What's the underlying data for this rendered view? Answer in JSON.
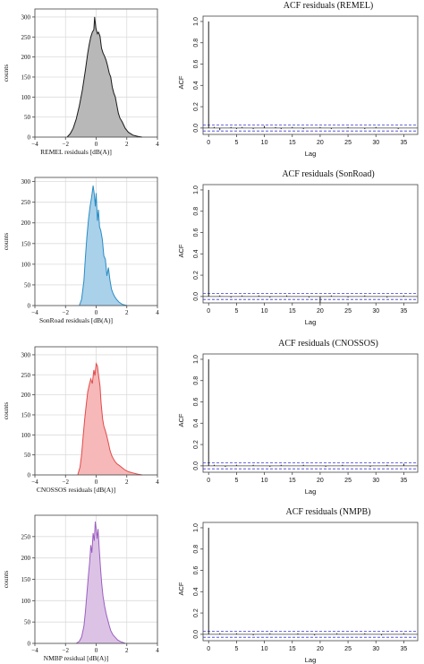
{
  "chart_data": [
    {
      "type": "area",
      "ylabel": "counts",
      "xlabel": "REMEL residuals [dB(A)]",
      "x_ticks": [
        -4,
        -2,
        0,
        2,
        4
      ],
      "y_ticks": [
        0,
        50,
        100,
        150,
        200,
        250,
        300
      ],
      "xlim": [
        -4,
        4
      ],
      "ylim": [
        0,
        320
      ],
      "grid": true,
      "fill": "#b8b8b8",
      "stroke": "#1a1a1a",
      "points": [
        [
          -1.9,
          0
        ],
        [
          -1.7,
          8
        ],
        [
          -1.5,
          22
        ],
        [
          -1.3,
          45
        ],
        [
          -1.1,
          78
        ],
        [
          -0.9,
          118
        ],
        [
          -0.7,
          168
        ],
        [
          -0.55,
          210
        ],
        [
          -0.45,
          232
        ],
        [
          -0.35,
          250
        ],
        [
          -0.25,
          262
        ],
        [
          -0.15,
          268
        ],
        [
          -0.1,
          300
        ],
        [
          -0.02,
          272
        ],
        [
          0.08,
          258
        ],
        [
          0.15,
          262
        ],
        [
          0.25,
          252
        ],
        [
          0.35,
          222
        ],
        [
          0.45,
          210
        ],
        [
          0.55,
          202
        ],
        [
          0.65,
          192
        ],
        [
          0.75,
          178
        ],
        [
          0.85,
          160
        ],
        [
          0.95,
          150
        ],
        [
          1.05,
          125
        ],
        [
          1.15,
          110
        ],
        [
          1.25,
          100
        ],
        [
          1.35,
          80
        ],
        [
          1.45,
          60
        ],
        [
          1.55,
          48
        ],
        [
          1.7,
          38
        ],
        [
          1.9,
          22
        ],
        [
          2.1,
          12
        ],
        [
          2.4,
          5
        ],
        [
          2.7,
          2
        ],
        [
          3.0,
          0
        ]
      ]
    },
    {
      "type": "line",
      "title": "ACF residuals (REMEL)",
      "xlabel": "Lag",
      "ylabel": "ACF",
      "x_ticks": [
        0,
        5,
        10,
        15,
        20,
        25,
        30,
        35
      ],
      "y_ticks": [
        0.0,
        0.2,
        0.4,
        0.6,
        0.8,
        1.0
      ],
      "xlim": [
        -1,
        37.5
      ],
      "ylim": [
        -0.06,
        1.05
      ],
      "conf_band": 0.028,
      "lags": [
        0,
        1,
        2,
        3,
        4,
        5,
        6,
        7,
        8,
        9,
        10,
        11,
        12,
        13,
        14,
        15,
        16,
        17,
        18,
        19,
        20,
        21,
        22,
        23,
        24,
        25,
        26,
        27,
        28,
        29,
        30,
        31,
        32,
        33,
        34,
        35,
        36
      ],
      "values": [
        1.0,
        0.01,
        -0.02,
        0.0,
        0.01,
        -0.01,
        0.01,
        0.0,
        -0.01,
        0.0,
        0.02,
        0.0,
        0.01,
        -0.01,
        0.0,
        0.01,
        0.0,
        -0.01,
        0.0,
        0.0,
        0.01,
        0.0,
        -0.01,
        0.0,
        0.0,
        0.01,
        0.0,
        0.0,
        -0.01,
        0.0,
        0.01,
        0.0,
        0.0,
        0.0,
        -0.01,
        0.0,
        0.0
      ]
    },
    {
      "type": "area",
      "ylabel": "counts",
      "xlabel": "SonRoad residuals [dB(A)]",
      "x_ticks": [
        -4,
        -2,
        0,
        2,
        4
      ],
      "y_ticks": [
        0,
        50,
        100,
        150,
        200,
        250,
        300
      ],
      "xlim": [
        -4,
        4
      ],
      "ylim": [
        0,
        310
      ],
      "grid": true,
      "fill": "#a9d1ea",
      "stroke": "#2a8cc4",
      "points": [
        [
          -1.1,
          0
        ],
        [
          -0.95,
          15
        ],
        [
          -0.8,
          60
        ],
        [
          -0.7,
          118
        ],
        [
          -0.6,
          168
        ],
        [
          -0.5,
          208
        ],
        [
          -0.4,
          240
        ],
        [
          -0.3,
          262
        ],
        [
          -0.2,
          290
        ],
        [
          -0.12,
          270
        ],
        [
          -0.05,
          240
        ],
        [
          0.0,
          272
        ],
        [
          0.08,
          205
        ],
        [
          0.15,
          232
        ],
        [
          0.22,
          190
        ],
        [
          0.3,
          182
        ],
        [
          0.4,
          160
        ],
        [
          0.5,
          120
        ],
        [
          0.6,
          112
        ],
        [
          0.7,
          72
        ],
        [
          0.8,
          92
        ],
        [
          0.9,
          62
        ],
        [
          1.0,
          40
        ],
        [
          1.1,
          30
        ],
        [
          1.2,
          22
        ],
        [
          1.35,
          14
        ],
        [
          1.5,
          8
        ],
        [
          1.7,
          3
        ],
        [
          2.0,
          0
        ]
      ]
    },
    {
      "type": "line",
      "title": "ACF residuals (SonRoad)",
      "xlabel": "Lag",
      "ylabel": "ACF",
      "x_ticks": [
        0,
        5,
        10,
        15,
        20,
        25,
        30,
        35
      ],
      "y_ticks": [
        0.0,
        0.2,
        0.4,
        0.6,
        0.8,
        1.0
      ],
      "xlim": [
        -1,
        37.5
      ],
      "ylim": [
        -0.06,
        1.05
      ],
      "conf_band": 0.028,
      "lags": [
        0,
        1,
        2,
        3,
        4,
        5,
        6,
        7,
        8,
        9,
        10,
        11,
        12,
        13,
        14,
        15,
        16,
        17,
        18,
        19,
        20,
        21,
        22,
        23,
        24,
        25,
        26,
        27,
        28,
        29,
        30,
        31,
        32,
        33,
        34,
        35,
        36
      ],
      "values": [
        1.0,
        0.0,
        0.01,
        0.0,
        -0.01,
        0.0,
        0.01,
        0.0,
        0.0,
        0.01,
        0.0,
        -0.01,
        0.0,
        0.0,
        0.01,
        0.0,
        0.0,
        0.0,
        -0.01,
        0.0,
        -0.06,
        0.0,
        0.01,
        0.0,
        0.0,
        -0.01,
        0.0,
        0.0,
        0.01,
        0.0,
        0.0,
        0.0,
        -0.01,
        0.0,
        0.0,
        0.01,
        0.0
      ]
    },
    {
      "type": "area",
      "ylabel": "counts",
      "xlabel": "CNOSSOS residuals [dB(A)]",
      "x_ticks": [
        -4,
        -2,
        0,
        2,
        4
      ],
      "y_ticks": [
        0,
        50,
        100,
        150,
        200,
        250,
        300
      ],
      "xlim": [
        -4,
        4
      ],
      "ylim": [
        0,
        320
      ],
      "grid": true,
      "fill": "#f6b8b8",
      "stroke": "#e24a4a",
      "points": [
        [
          -1.2,
          0
        ],
        [
          -1.05,
          20
        ],
        [
          -0.95,
          50
        ],
        [
          -0.85,
          95
        ],
        [
          -0.75,
          140
        ],
        [
          -0.65,
          175
        ],
        [
          -0.55,
          208
        ],
        [
          -0.45,
          225
        ],
        [
          -0.35,
          240
        ],
        [
          -0.25,
          228
        ],
        [
          -0.15,
          262
        ],
        [
          -0.08,
          248
        ],
        [
          0.0,
          278
        ],
        [
          0.08,
          272
        ],
        [
          0.15,
          250
        ],
        [
          0.25,
          222
        ],
        [
          0.32,
          180
        ],
        [
          0.42,
          140
        ],
        [
          0.5,
          122
        ],
        [
          0.6,
          110
        ],
        [
          0.7,
          96
        ],
        [
          0.8,
          80
        ],
        [
          0.9,
          62
        ],
        [
          1.0,
          50
        ],
        [
          1.1,
          42
        ],
        [
          1.2,
          35
        ],
        [
          1.35,
          28
        ],
        [
          1.5,
          24
        ],
        [
          1.7,
          18
        ],
        [
          1.9,
          12
        ],
        [
          2.1,
          8
        ],
        [
          2.4,
          5
        ],
        [
          2.7,
          2
        ],
        [
          3.0,
          0
        ]
      ]
    },
    {
      "type": "line",
      "title": "ACF residuals (CNOSSOS)",
      "xlabel": "Lag",
      "ylabel": "ACF",
      "x_ticks": [
        0,
        5,
        10,
        15,
        20,
        25,
        30,
        35
      ],
      "y_ticks": [
        0.0,
        0.2,
        0.4,
        0.6,
        0.8,
        1.0
      ],
      "xlim": [
        -1,
        37.5
      ],
      "ylim": [
        -0.06,
        1.05
      ],
      "conf_band": 0.028,
      "lags": [
        0,
        1,
        2,
        3,
        4,
        5,
        6,
        7,
        8,
        9,
        10,
        11,
        12,
        13,
        14,
        15,
        16,
        17,
        18,
        19,
        20,
        21,
        22,
        23,
        24,
        25,
        26,
        27,
        28,
        29,
        30,
        31,
        32,
        33,
        34,
        35,
        36
      ],
      "values": [
        1.0,
        0.01,
        0.0,
        -0.01,
        0.0,
        0.01,
        0.0,
        0.0,
        0.01,
        0.0,
        0.0,
        -0.01,
        0.0,
        0.01,
        0.0,
        0.0,
        0.0,
        0.01,
        0.0,
        0.0,
        0.0,
        -0.01,
        0.0,
        0.0,
        0.01,
        0.0,
        0.0,
        0.0,
        0.0,
        -0.01,
        0.0,
        0.0,
        0.01,
        0.0,
        0.0,
        0.02,
        0.0
      ]
    },
    {
      "type": "area",
      "ylabel": "counts",
      "xlabel": "NMBP residual [dB(A)]",
      "x_ticks": [
        -4,
        -2,
        0,
        2,
        4
      ],
      "y_ticks": [
        0,
        50,
        100,
        150,
        200,
        250
      ],
      "xlim": [
        -4,
        4
      ],
      "ylim": [
        0,
        300
      ],
      "grid": true,
      "fill": "#dcc3e6",
      "stroke": "#9b5fc0",
      "points": [
        [
          -1.3,
          0
        ],
        [
          -1.1,
          5
        ],
        [
          -0.95,
          15
        ],
        [
          -0.8,
          40
        ],
        [
          -0.7,
          75
        ],
        [
          -0.6,
          118
        ],
        [
          -0.5,
          160
        ],
        [
          -0.42,
          192
        ],
        [
          -0.35,
          230
        ],
        [
          -0.28,
          212
        ],
        [
          -0.2,
          258
        ],
        [
          -0.12,
          240
        ],
        [
          -0.06,
          285
        ],
        [
          0.0,
          268
        ],
        [
          0.06,
          245
        ],
        [
          0.12,
          268
        ],
        [
          0.2,
          222
        ],
        [
          0.28,
          178
        ],
        [
          0.36,
          140
        ],
        [
          0.45,
          110
        ],
        [
          0.55,
          88
        ],
        [
          0.65,
          70
        ],
        [
          0.75,
          56
        ],
        [
          0.85,
          42
        ],
        [
          0.95,
          30
        ],
        [
          1.1,
          20
        ],
        [
          1.25,
          14
        ],
        [
          1.4,
          8
        ],
        [
          1.6,
          4
        ],
        [
          1.9,
          0
        ]
      ]
    },
    {
      "type": "line",
      "title": "ACF residuals (NMPB)",
      "xlabel": "Lag",
      "ylabel": "ACF",
      "x_ticks": [
        0,
        5,
        10,
        15,
        20,
        25,
        30,
        35
      ],
      "y_ticks": [
        0.0,
        0.2,
        0.4,
        0.6,
        0.8,
        1.0
      ],
      "xlim": [
        -1,
        37.5
      ],
      "ylim": [
        -0.06,
        1.05
      ],
      "conf_band": 0.028,
      "lags": [
        0,
        1,
        2,
        3,
        4,
        5,
        6,
        7,
        8,
        9,
        10,
        11,
        12,
        13,
        14,
        15,
        16,
        17,
        18,
        19,
        20,
        21,
        22,
        23,
        24,
        25,
        26,
        27,
        28,
        29,
        30,
        31,
        32,
        33,
        34,
        35,
        36
      ],
      "values": [
        1.0,
        0.0,
        0.01,
        0.0,
        0.0,
        0.01,
        0.0,
        0.0,
        -0.01,
        0.0,
        0.0,
        0.01,
        0.0,
        0.0,
        0.0,
        0.0,
        0.01,
        0.0,
        0.0,
        -0.01,
        0.0,
        0.0,
        0.0,
        0.01,
        0.0,
        0.0,
        0.0,
        0.0,
        0.01,
        0.0,
        0.0,
        -0.01,
        0.0,
        0.0,
        0.0,
        0.01,
        0.0
      ]
    }
  ]
}
